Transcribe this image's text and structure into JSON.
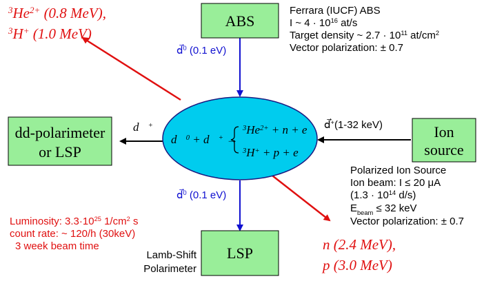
{
  "abs": {
    "label": [
      "ABS"
    ],
    "info": [
      [
        "Ferrara (IUCF) ABS"
      ],
      [
        "I ~  4 · 10",
        {
          "sup": "16"
        },
        " at/s"
      ],
      [
        "Target density ~ 2.7 · 10",
        {
          "sup": "11"
        },
        " at/cm",
        {
          "sup": "2"
        }
      ],
      [
        "Vector polarization: ± 0.7"
      ]
    ]
  },
  "products_top": [
    [
      {
        "sup": "3"
      },
      "He",
      {
        "sup": "2+"
      },
      " (0.8 MeV),"
    ],
    [
      {
        "sup": "3"
      },
      "H",
      {
        "sup": "+"
      },
      " (1.0 MeV)"
    ]
  ],
  "beam_top": [
    "d⃗",
    {
      "sup": "0"
    },
    " (0.1 eV)"
  ],
  "beam_bottom": [
    "d⃗",
    {
      "sup": "0"
    },
    " (0.1 eV)"
  ],
  "reaction": {
    "left": [
      "d⃗",
      {
        "sup": "0"
      },
      " + d⃗",
      {
        "sup": "+"
      },
      " →"
    ],
    "channels": [
      [
        {
          "sup": "3"
        },
        "He",
        {
          "sup": "2+"
        },
        " + n + e"
      ],
      [
        {
          "sup": "3"
        },
        "H",
        {
          "sup": "+"
        },
        " + p + e"
      ]
    ]
  },
  "left_box": [
    [
      "dd-polarimeter"
    ],
    [
      "or LSP"
    ]
  ],
  "left_arrow": [
    "d⃗",
    {
      "sup": "+"
    }
  ],
  "ion_box": [
    [
      "Ion"
    ],
    [
      "source"
    ]
  ],
  "right_arrow": [
    "d⃗",
    {
      "sup": "+"
    },
    "(1-32 keV)"
  ],
  "ion_info": [
    [
      "Polarized Ion Source"
    ],
    [
      "Ion beam: I ≤ 20 μA"
    ],
    [
      "(1.3 · 10",
      {
        "sup": "14"
      },
      "  d/s)"
    ],
    [
      "E",
      {
        "sub": "beam"
      },
      " ≤ 32 keV"
    ],
    [
      "Vector polarization: ± 0.7"
    ]
  ],
  "luminosity": [
    [
      "Luminosity: 3.3·10",
      {
        "sup": "25"
      },
      " 1/cm",
      {
        "sup": "2"
      },
      " s"
    ],
    [
      " count rate: ~ 120/h (30keV)"
    ],
    [
      "3 week beam time"
    ]
  ],
  "lsp": {
    "label": [
      "LSP"
    ],
    "caption": [
      [
        "Lamb-Shift"
      ],
      [
        "Polarimeter"
      ]
    ]
  },
  "products_bottom": [
    [
      "n",
      " (2.4 MeV),"
    ],
    [
      "p",
      " (3.0 MeV)"
    ]
  ]
}
